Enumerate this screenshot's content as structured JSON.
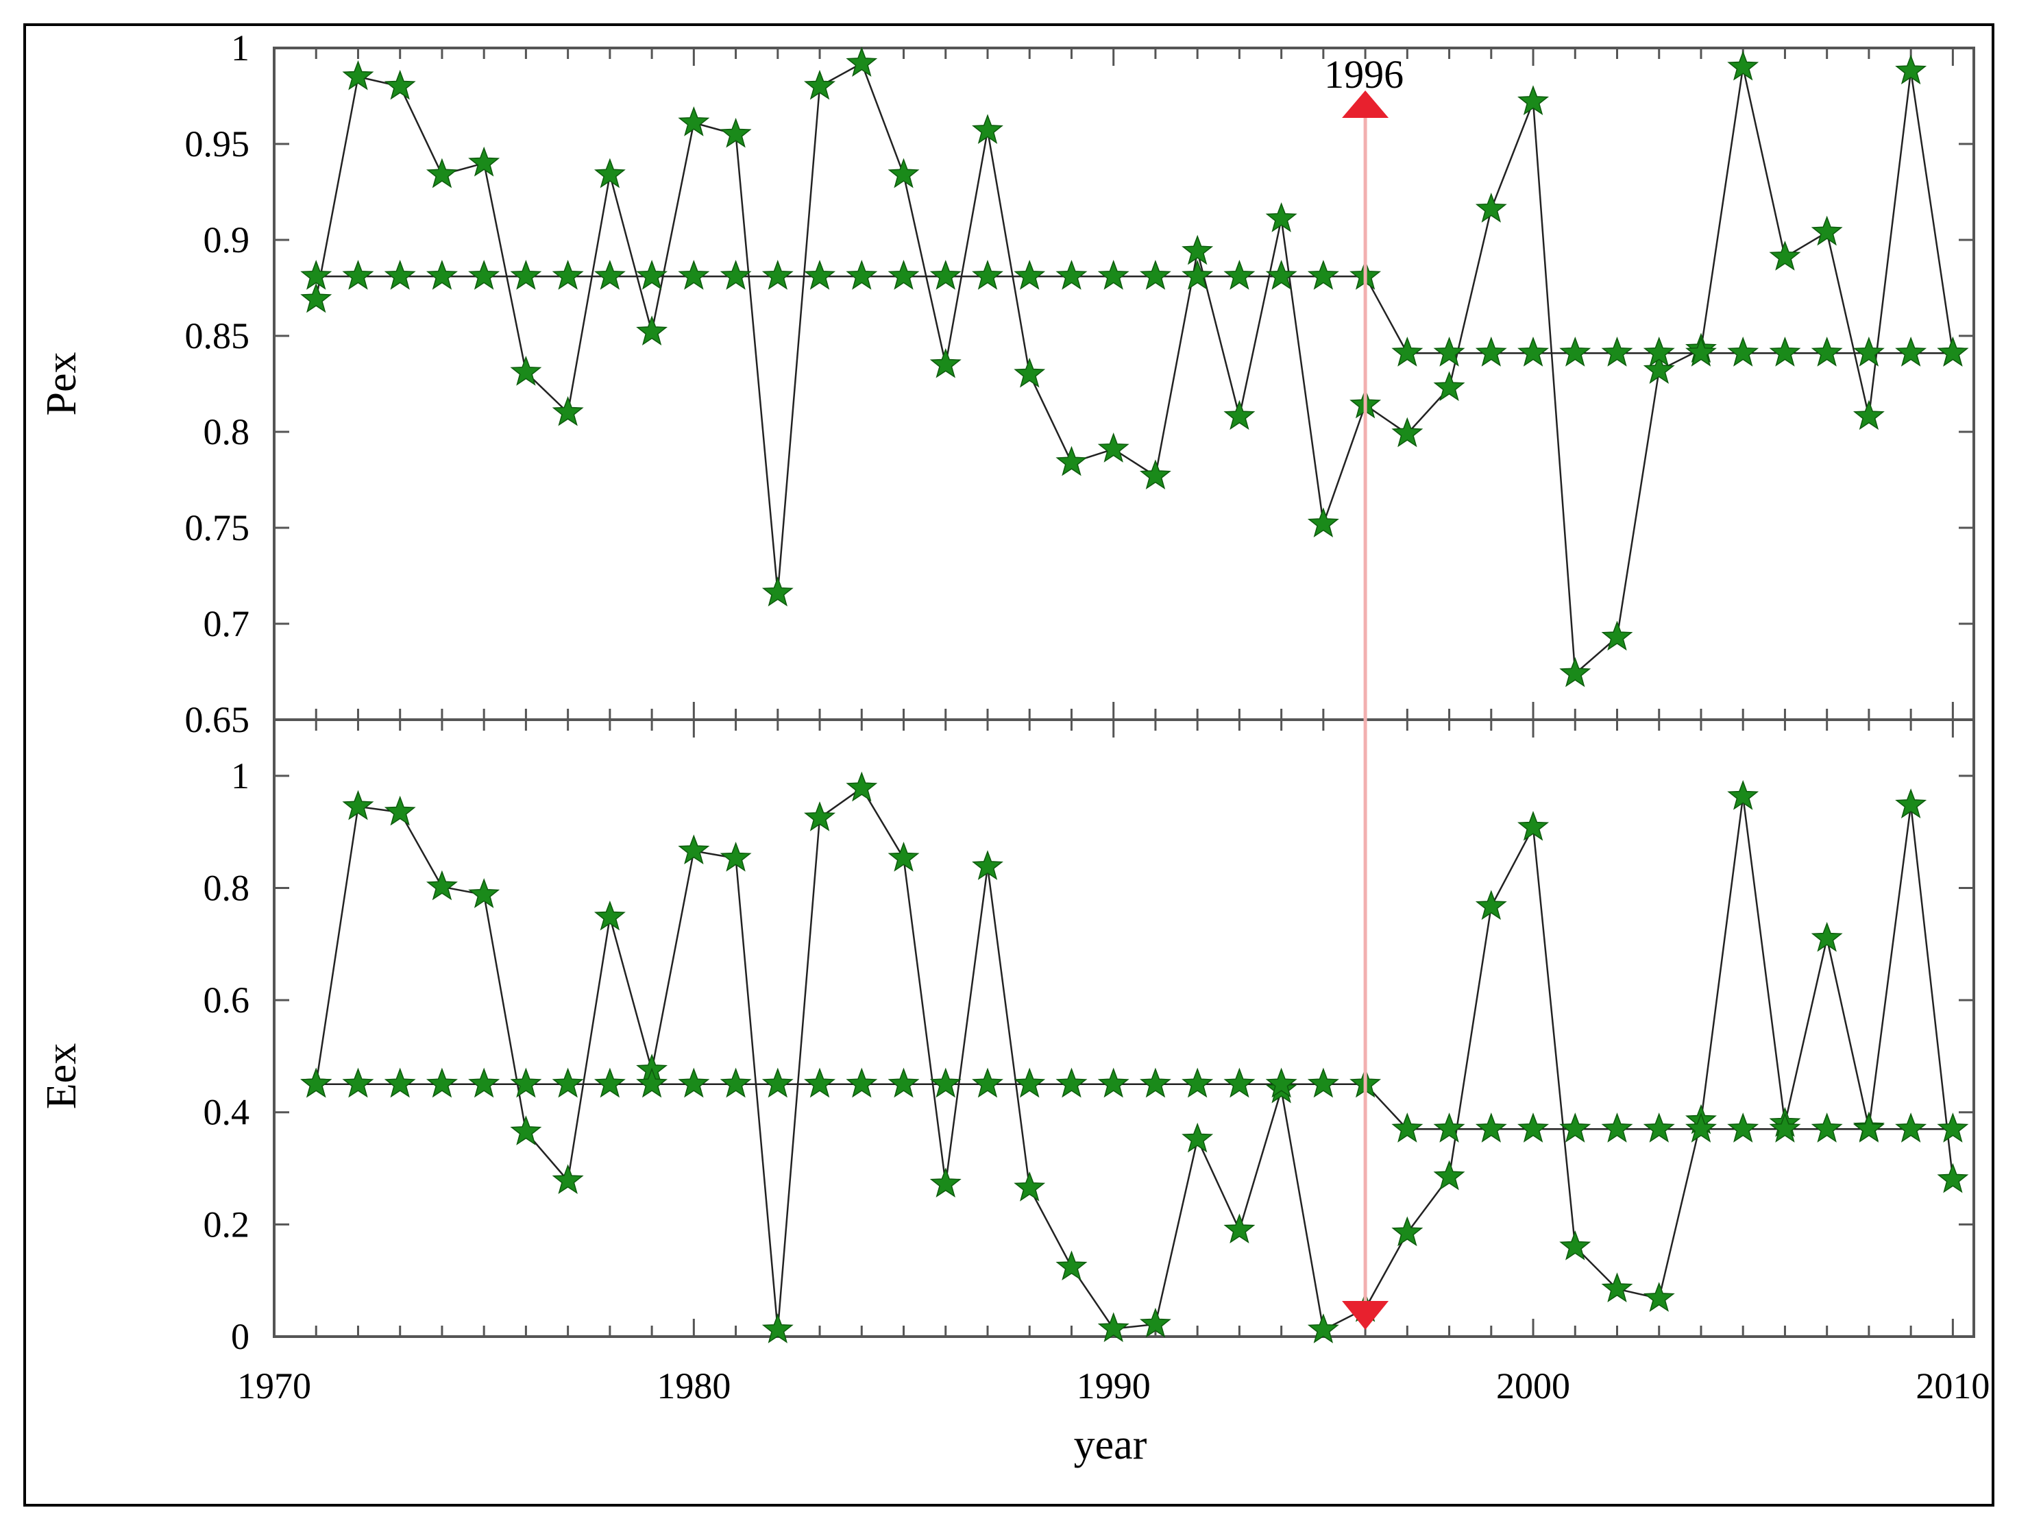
{
  "chart_data": [
    {
      "type": "line",
      "panel": "top",
      "ylabel": "Pex",
      "ylim": [
        0.65,
        1.0
      ],
      "yticks": [
        "0.65",
        "0.7",
        "0.75",
        "0.8",
        "0.85",
        "0.9",
        "0.95",
        "1"
      ],
      "x": [
        1971,
        1972,
        1973,
        1974,
        1975,
        1976,
        1977,
        1978,
        1979,
        1980,
        1981,
        1982,
        1983,
        1984,
        1985,
        1986,
        1987,
        1988,
        1989,
        1990,
        1991,
        1992,
        1993,
        1994,
        1995,
        1996,
        1997,
        1998,
        1999,
        2000,
        2001,
        2002,
        2003,
        2004,
        2005,
        2006,
        2007,
        2008,
        2009,
        2010
      ],
      "series": [
        {
          "values": [
            0.869,
            0.985,
            0.98,
            0.934,
            0.94,
            0.831,
            0.81,
            0.934,
            0.852,
            0.961,
            0.955,
            0.716,
            0.98,
            0.992,
            0.934,
            0.835,
            0.957,
            0.83,
            0.784,
            0.791,
            0.777,
            0.894,
            0.808,
            0.911,
            0.752,
            0.814,
            0.799,
            0.823,
            0.916,
            0.972,
            0.674,
            0.693,
            0.832,
            0.843,
            0.99,
            0.891,
            0.904,
            0.808,
            0.988,
            0.841
          ]
        },
        {
          "values": [
            0.881,
            0.881,
            0.881,
            0.881,
            0.881,
            0.881,
            0.881,
            0.881,
            0.881,
            0.881,
            0.881,
            0.881,
            0.881,
            0.881,
            0.881,
            0.881,
            0.881,
            0.881,
            0.881,
            0.881,
            0.881,
            0.881,
            0.881,
            0.881,
            0.881,
            0.881,
            0.841,
            0.841,
            0.841,
            0.841,
            0.841,
            0.841,
            0.841,
            0.841,
            0.841,
            0.841,
            0.841,
            0.841,
            0.841,
            0.841
          ]
        }
      ]
    },
    {
      "type": "line",
      "panel": "bottom",
      "ylabel": "Eex",
      "xlabel": "year",
      "ylim": [
        0,
        1.1
      ],
      "yticks": [
        "0",
        "0.2",
        "0.4",
        "0.6",
        "0.8",
        "1"
      ],
      "xticks": [
        "1970",
        "1980",
        "1990",
        "2000",
        "2010"
      ],
      "xlim": [
        1970,
        2010.5
      ],
      "x": [
        1971,
        1972,
        1973,
        1974,
        1975,
        1976,
        1977,
        1978,
        1979,
        1980,
        1981,
        1982,
        1983,
        1984,
        1985,
        1986,
        1987,
        1988,
        1989,
        1990,
        1991,
        1992,
        1993,
        1994,
        1995,
        1996,
        1997,
        1998,
        1999,
        2000,
        2001,
        2002,
        2003,
        2004,
        2005,
        2006,
        2007,
        2008,
        2009,
        2010
      ],
      "series": [
        {
          "values": [
            0.45,
            0.945,
            0.935,
            0.802,
            0.788,
            0.365,
            0.278,
            0.748,
            0.475,
            0.866,
            0.853,
            0.012,
            0.925,
            0.978,
            0.853,
            0.272,
            0.838,
            0.265,
            0.124,
            0.014,
            0.022,
            0.352,
            0.19,
            0.44,
            0.012,
            0.05,
            0.185,
            0.285,
            0.767,
            0.908,
            0.16,
            0.085,
            0.068,
            0.385,
            0.963,
            0.38,
            0.71,
            0.372,
            0.948,
            0.28
          ]
        },
        {
          "values": [
            0.45,
            0.45,
            0.45,
            0.45,
            0.45,
            0.45,
            0.45,
            0.45,
            0.45,
            0.45,
            0.45,
            0.45,
            0.45,
            0.45,
            0.45,
            0.45,
            0.45,
            0.45,
            0.45,
            0.45,
            0.45,
            0.45,
            0.45,
            0.45,
            0.45,
            0.45,
            0.37,
            0.37,
            0.37,
            0.37,
            0.37,
            0.37,
            0.37,
            0.37,
            0.37,
            0.37,
            0.37,
            0.37,
            0.37,
            0.37
          ]
        }
      ]
    }
  ],
  "annotation": {
    "label": "1996",
    "x": 1996
  },
  "colors": {
    "marker": "#1a8a1a",
    "line": "#222222",
    "arrow": "#e8212e",
    "arrow_line": "#f2b0b0"
  }
}
